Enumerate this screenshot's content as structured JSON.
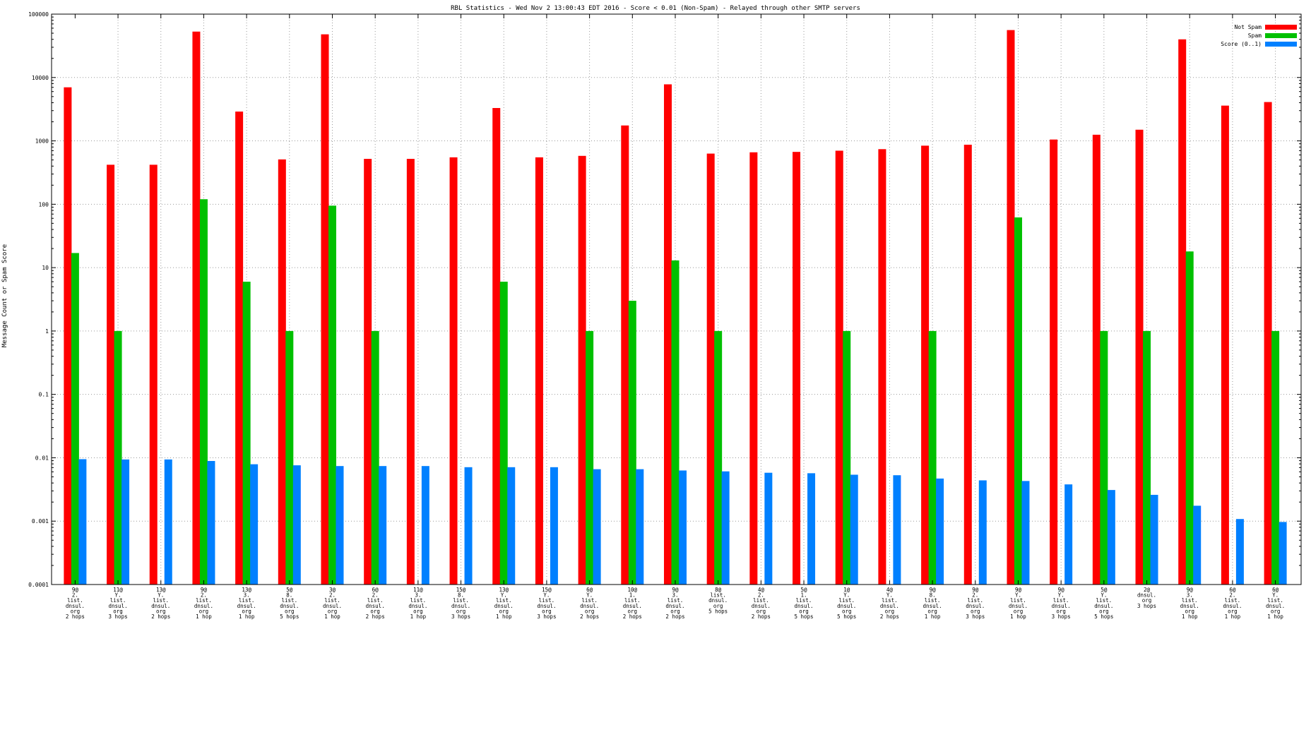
{
  "chart_data": {
    "type": "bar",
    "title": "RBL Statistics - Wed Nov  2 13:00:43 EDT 2016 - Score < 0.01 (Non-Spam) - Relayed through other SMTP servers",
    "xlabel": "",
    "ylabel": "Message Count or Spam Score",
    "yscale": "log",
    "ylim": [
      0.0001,
      100000
    ],
    "yticks": [
      "0.0001",
      "0.001",
      "0.01",
      "0.1",
      "1",
      "10",
      "100",
      "1000",
      "10000",
      "100000"
    ],
    "grid": true,
    "legend_position": "top-right",
    "categories": [
      "9@\n2.\nlist.\ndnsul.\norg\n2 hops",
      "11@\nY.\nlist.\ndnsul.\norg\n3 hops",
      "13@\nY.\nlist.\ndnsul.\norg\n2 hops",
      "9@\n2.\nlist.\ndnsul.\norg\n1 hop",
      "13@\n3.\nlist.\ndnsul.\norg\n1 hop",
      "5@\n8.\nlist.\ndnsul.\norg\n5 hops",
      "3@\n2.\nlist.\ndnsul.\norg\n1 hop",
      "6@\n2.\nlist.\ndnsul.\norg\n2 hops",
      "11@\n3.\nlist.\ndnsul.\norg\n1 hop",
      "15@\n8.\nlist.\ndnsul.\norg\n3 hops",
      "13@\nY.\nlist.\ndnsul.\norg\n1 hop",
      "15@\nY.\nlist.\ndnsul.\norg\n3 hops",
      "6@\nY.\nlist.\ndnsul.\norg\n2 hops",
      "10@\n1.\nlist.\ndnsul.\norg\n2 hops",
      "9@\n3.\nlist.\ndnsul.\norg\n2 hops",
      "8@\nlist.\ndnsul.\norg\n5 hops",
      "4@\n2.\nlist.\ndnsul.\norg\n2 hops",
      "5@\n1.\nlist.\ndnsul.\norg\n5 hops",
      "1@\nY.\nlist.\ndnsul.\norg\n5 hops",
      "4@\nY.\nlist.\ndnsul.\norg\n2 hops",
      "9@\n8.\nlist.\ndnsul.\norg\n1 hop",
      "9@\n2.\nlist.\ndnsul.\norg\n3 hops",
      "9@\nY.\nlist.\ndnsul.\norg\n1 hop",
      "9@\nY.\nlist.\ndnsul.\norg\n3 hops",
      "5@\nY.\nlist.\ndnsul.\norg\n5 hops",
      "2@\ndnsul.\norg\n3 hops",
      "9@\n3.\nlist.\ndnsul.\norg\n1 hop",
      "6@\n2.\nlist.\ndnsul.\norg\n1 hop",
      "6@\nY.\nlist.\ndnsul.\norg\n1 hop"
    ],
    "series": [
      {
        "name": "Not Spam",
        "color": "#ff0000",
        "values": [
          7000,
          420,
          420,
          53000,
          2900,
          510,
          48000,
          520,
          520,
          550,
          3300,
          550,
          580,
          1750,
          7800,
          630,
          660,
          670,
          700,
          740,
          840,
          870,
          56000,
          1050,
          1250,
          1500,
          40000,
          3600,
          4100
        ]
      },
      {
        "name": "Spam",
        "color": "#00c000",
        "values": [
          17,
          1,
          null,
          120,
          6,
          1,
          95,
          1,
          null,
          null,
          6,
          null,
          1,
          3,
          13,
          1,
          null,
          null,
          1,
          null,
          1,
          null,
          62,
          null,
          1,
          1,
          18,
          null,
          1
        ]
      },
      {
        "name": "Score (0..1)",
        "color": "#0080ff",
        "values": [
          0.0095,
          0.0094,
          0.0094,
          0.0089,
          0.0079,
          0.0076,
          0.0074,
          0.0074,
          0.0074,
          0.0071,
          0.0071,
          0.0071,
          0.0066,
          0.0066,
          0.0063,
          0.0061,
          0.0058,
          0.0057,
          0.0054,
          0.0053,
          0.0047,
          0.0044,
          0.0043,
          0.0038,
          0.0031,
          0.0026,
          0.00175,
          0.00108,
          0.00097
        ]
      }
    ]
  }
}
